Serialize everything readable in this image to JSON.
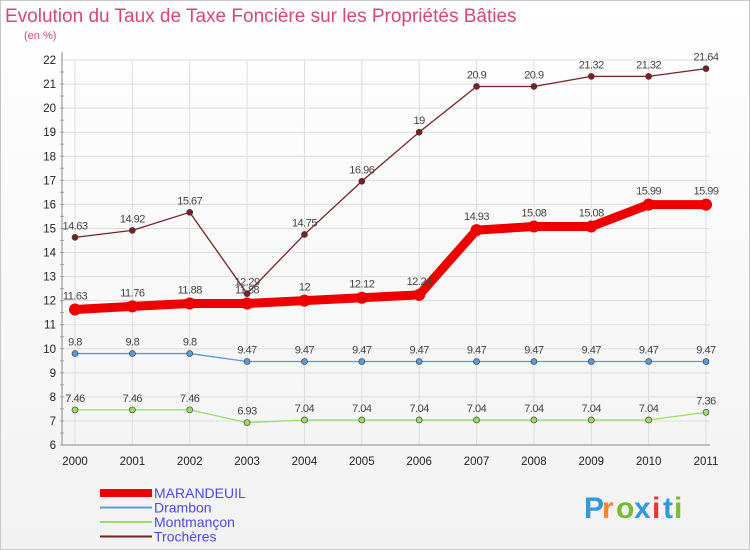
{
  "chart_data": {
    "type": "line",
    "title": "Evolution du Taux de Taxe Foncière sur les Propriétés Bâties",
    "ylabel": "(en %)",
    "xlabel": "",
    "ylim": [
      6,
      22
    ],
    "yticks": [
      6,
      7,
      8,
      9,
      10,
      11,
      12,
      13,
      14,
      15,
      16,
      17,
      18,
      19,
      20,
      21,
      22
    ],
    "x": [
      "2000",
      "2001",
      "2002",
      "2003",
      "2004",
      "2005",
      "2006",
      "2007",
      "2008",
      "2009",
      "2010",
      "2011"
    ],
    "grid": true,
    "legend_position": "bottom-left",
    "series": [
      {
        "name": "MARANDEUIL",
        "color": "#ee0000",
        "values": [
          11.63,
          11.76,
          11.88,
          11.88,
          12,
          12.12,
          12.24,
          14.93,
          15.08,
          15.08,
          15.99,
          15.99
        ],
        "labels": [
          "11.63",
          "11.76",
          "11.88",
          "11.88",
          "12",
          "12.12",
          "12.24",
          "14.93",
          "15.08",
          "15.08",
          "15.99",
          "15.99"
        ]
      },
      {
        "name": "Drambon",
        "color": "#5b9bd5",
        "values": [
          9.8,
          9.8,
          9.8,
          9.47,
          9.47,
          9.47,
          9.47,
          9.47,
          9.47,
          9.47,
          9.47,
          9.47
        ],
        "labels": [
          "9.8",
          "9.8",
          "9.8",
          "9.47",
          "9.47",
          "9.47",
          "9.47",
          "9.47",
          "9.47",
          "9.47",
          "9.47",
          "9.47"
        ]
      },
      {
        "name": "Montmançon",
        "color": "#99dd66",
        "values": [
          7.46,
          7.46,
          7.46,
          6.93,
          7.04,
          7.04,
          7.04,
          7.04,
          7.04,
          7.04,
          7.04,
          7.36
        ],
        "labels": [
          "7.46",
          "7.46",
          "7.46",
          "6.93",
          "7.04",
          "7.04",
          "7.04",
          "7.04",
          "7.04",
          "7.04",
          "7.04",
          "7.36"
        ]
      },
      {
        "name": "Trochères",
        "color": "#772222",
        "values": [
          14.63,
          14.92,
          15.67,
          12.29,
          14.75,
          16.96,
          19,
          20.9,
          20.9,
          21.32,
          21.32,
          21.64
        ],
        "labels": [
          "14.63",
          "14.92",
          "15.67",
          "12.29",
          "14.75",
          "16.96",
          "19",
          "20.9",
          "20.9",
          "21.32",
          "21.32",
          "21.64"
        ]
      }
    ]
  },
  "logo": {
    "letters": [
      "P",
      "r",
      "o",
      "x",
      "i",
      "t",
      "i"
    ],
    "colors": [
      "#3399dd",
      "#ee8833",
      "#77bb33",
      "#3399dd",
      "#ee3333",
      "#3399dd",
      "#77bb33"
    ]
  }
}
